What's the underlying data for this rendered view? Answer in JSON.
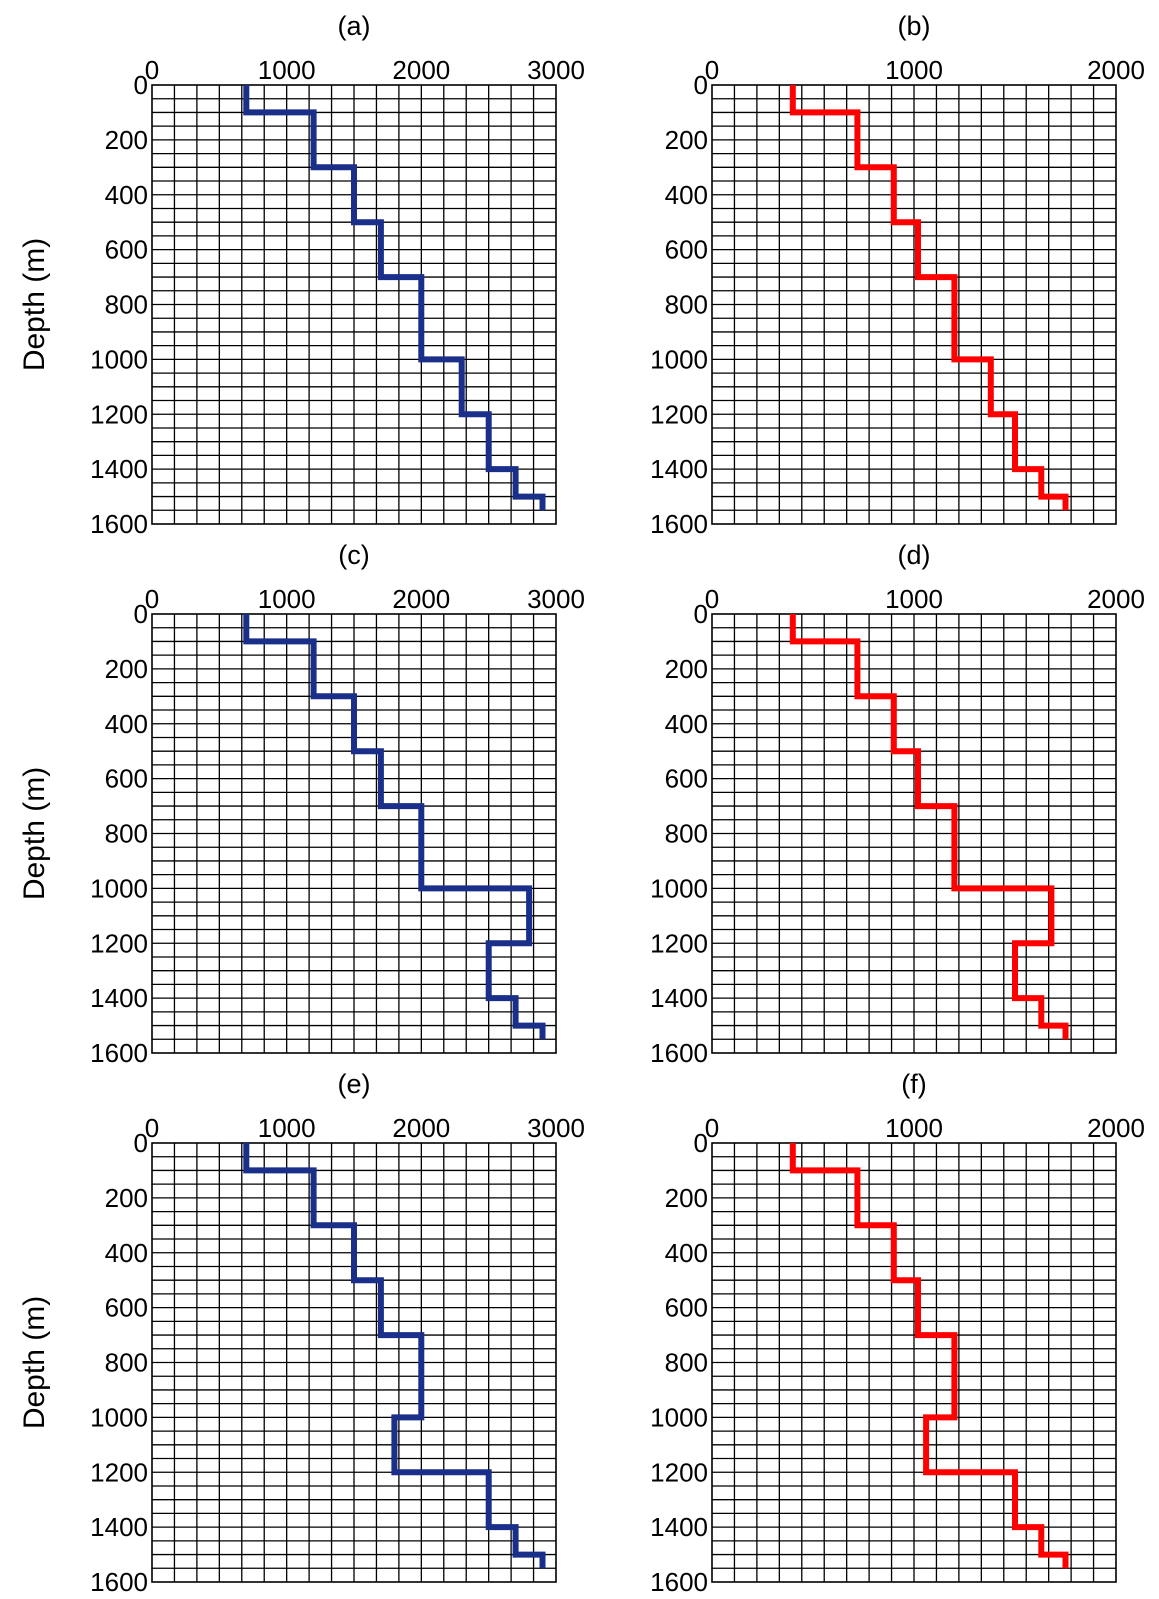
{
  "chart_data": [
    {
      "type": "line",
      "panel": "(a)",
      "title": "(a)",
      "xlabel": "",
      "ylabel": "Depth (m)",
      "xlim": [
        0,
        3000
      ],
      "ylim": [
        1600,
        0
      ],
      "xticks": [
        "0",
        "1000",
        "2000",
        "3000"
      ],
      "yticks": [
        "0",
        "200",
        "400",
        "600",
        "800",
        "1000",
        "1200",
        "1400",
        "1600"
      ],
      "grid": true,
      "color": "#1a2f8a",
      "x": [
        700,
        700,
        1200,
        1200,
        1500,
        1500,
        1700,
        1700,
        2000,
        2000,
        2300,
        2300,
        2500,
        2500,
        2700,
        2700,
        2900,
        2900
      ],
      "y": [
        0,
        100,
        100,
        300,
        300,
        500,
        500,
        700,
        700,
        1000,
        1000,
        1200,
        1200,
        1400,
        1400,
        1500,
        1500,
        1550
      ]
    },
    {
      "type": "line",
      "panel": "(b)",
      "title": "(b)",
      "xlabel": "",
      "ylabel": "",
      "xlim": [
        0,
        2000
      ],
      "ylim": [
        1600,
        0
      ],
      "xticks": [
        "0",
        "1000",
        "2000"
      ],
      "yticks": [
        "0",
        "200",
        "400",
        "600",
        "800",
        "1000",
        "1200",
        "1400",
        "1600"
      ],
      "grid": true,
      "color": "#ff0000",
      "x": [
        400,
        400,
        720,
        720,
        900,
        900,
        1020,
        1020,
        1200,
        1200,
        1380,
        1380,
        1500,
        1500,
        1630,
        1630,
        1750,
        1750
      ],
      "y": [
        0,
        100,
        100,
        300,
        300,
        500,
        500,
        700,
        700,
        1000,
        1000,
        1200,
        1200,
        1400,
        1400,
        1500,
        1500,
        1550
      ]
    },
    {
      "type": "line",
      "panel": "(c)",
      "title": "(c)",
      "xlabel": "",
      "ylabel": "Depth (m)",
      "xlim": [
        0,
        3000
      ],
      "ylim": [
        1600,
        0
      ],
      "xticks": [
        "0",
        "1000",
        "2000",
        "3000"
      ],
      "yticks": [
        "0",
        "200",
        "400",
        "600",
        "800",
        "1000",
        "1200",
        "1400",
        "1600"
      ],
      "grid": true,
      "color": "#1a2f8a",
      "x": [
        700,
        700,
        1200,
        1200,
        1500,
        1500,
        1700,
        1700,
        2000,
        2000,
        2800,
        2800,
        2500,
        2500,
        2700,
        2700,
        2900,
        2900
      ],
      "y": [
        0,
        100,
        100,
        300,
        300,
        500,
        500,
        700,
        700,
        1000,
        1000,
        1200,
        1200,
        1400,
        1400,
        1500,
        1500,
        1550
      ]
    },
    {
      "type": "line",
      "panel": "(d)",
      "title": "(d)",
      "xlabel": "",
      "ylabel": "",
      "xlim": [
        0,
        2000
      ],
      "ylim": [
        1600,
        0
      ],
      "xticks": [
        "0",
        "1000",
        "2000"
      ],
      "yticks": [
        "0",
        "200",
        "400",
        "600",
        "800",
        "1000",
        "1200",
        "1400",
        "1600"
      ],
      "grid": true,
      "color": "#ff0000",
      "x": [
        400,
        400,
        720,
        720,
        900,
        900,
        1020,
        1020,
        1200,
        1200,
        1680,
        1680,
        1500,
        1500,
        1630,
        1630,
        1750,
        1750
      ],
      "y": [
        0,
        100,
        100,
        300,
        300,
        500,
        500,
        700,
        700,
        1000,
        1000,
        1200,
        1200,
        1400,
        1400,
        1500,
        1500,
        1550
      ]
    },
    {
      "type": "line",
      "panel": "(e)",
      "title": "(e)",
      "xlabel": "",
      "ylabel": "Depth (m)",
      "xlim": [
        0,
        3000
      ],
      "ylim": [
        1600,
        0
      ],
      "xticks": [
        "0",
        "1000",
        "2000",
        "3000"
      ],
      "yticks": [
        "0",
        "200",
        "400",
        "600",
        "800",
        "1000",
        "1200",
        "1400",
        "1600"
      ],
      "grid": true,
      "color": "#1a2f8a",
      "x": [
        700,
        700,
        1200,
        1200,
        1500,
        1500,
        1700,
        1700,
        2000,
        2000,
        1800,
        1800,
        2500,
        2500,
        2700,
        2700,
        2900,
        2900
      ],
      "y": [
        0,
        100,
        100,
        300,
        300,
        500,
        500,
        700,
        700,
        1000,
        1000,
        1200,
        1200,
        1400,
        1400,
        1500,
        1500,
        1550
      ]
    },
    {
      "type": "line",
      "panel": "(f)",
      "title": "(f)",
      "xlabel": "",
      "ylabel": "",
      "xlim": [
        0,
        2000
      ],
      "ylim": [
        1600,
        0
      ],
      "xticks": [
        "0",
        "1000",
        "2000"
      ],
      "yticks": [
        "0",
        "200",
        "400",
        "600",
        "800",
        "1000",
        "1200",
        "1400",
        "1600"
      ],
      "grid": true,
      "color": "#ff0000",
      "x": [
        400,
        400,
        720,
        720,
        900,
        900,
        1020,
        1020,
        1200,
        1200,
        1060,
        1060,
        1500,
        1500,
        1630,
        1630,
        1750,
        1750
      ],
      "y": [
        0,
        100,
        100,
        300,
        300,
        500,
        500,
        700,
        700,
        1000,
        1000,
        1200,
        1200,
        1400,
        1400,
        1500,
        1500,
        1550
      ]
    }
  ]
}
